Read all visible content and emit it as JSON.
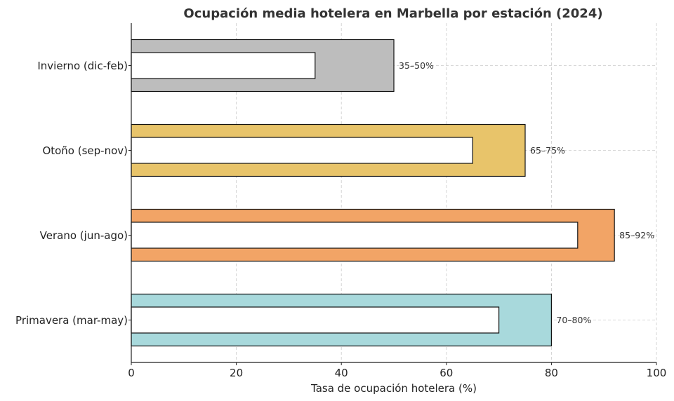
{
  "chart_data": {
    "type": "bar",
    "title": "Ocupación media hotelera en Marbella por estación (2024)",
    "xlabel": "Tasa de ocupación hotelera (%)",
    "ylabel": "",
    "xlim": [
      0,
      100
    ],
    "xticks": [
      "0",
      "20",
      "40",
      "60",
      "80",
      "100"
    ],
    "grid": true,
    "categories": [
      "Invierno (dic-feb)",
      "Otoño (sep-nov)",
      "Verano (jun-ago)",
      "Primavera (mar-may)"
    ],
    "series": [
      {
        "role": "range_max",
        "values": [
          50,
          75,
          92,
          80
        ]
      },
      {
        "role": "range_min",
        "values": [
          35,
          65,
          85,
          70
        ]
      }
    ],
    "range_labels": [
      "35–50%",
      "65–75%",
      "85–92%",
      "70–80%"
    ],
    "colors": [
      "#bdbdbd",
      "#e8c46a",
      "#f2a466",
      "#a8d9dc"
    ]
  }
}
